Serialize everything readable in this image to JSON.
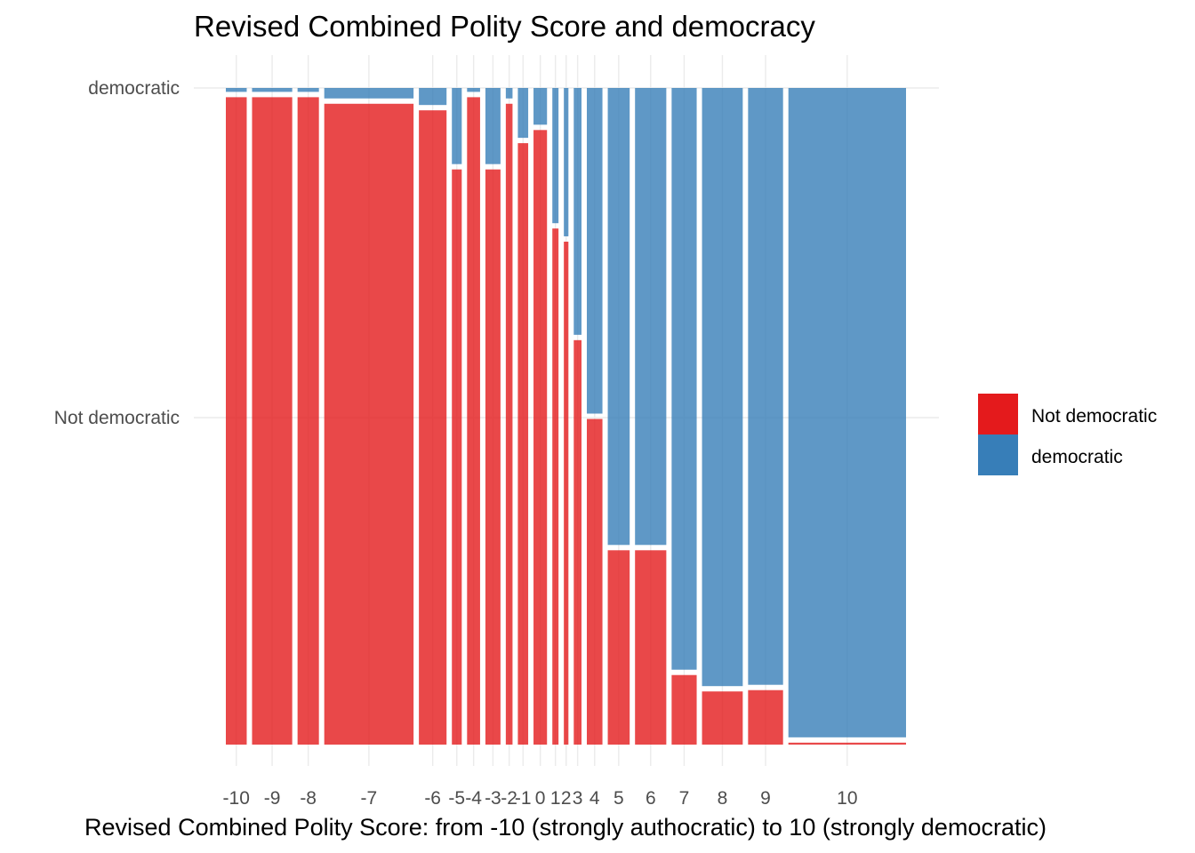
{
  "chart_data": {
    "type": "mosaic",
    "title": "Revised Combined Polity Score and democracy",
    "xlabel": "Revised Combined Polity Score: from -10 (strongly authocratic) to 10 (strongly democratic)",
    "ylabel": "",
    "y_levels": [
      "Not democratic",
      "democratic"
    ],
    "ylim": [
      0,
      1
    ],
    "grid": true,
    "legend_position": "right",
    "categories": [
      "-10",
      "-9",
      "-8",
      "-7",
      "-6",
      "-5",
      "-4",
      "-3",
      "-2",
      "-1",
      "0",
      "1",
      "2",
      "3",
      "4",
      "5",
      "6",
      "7",
      "8",
      "9",
      "10"
    ],
    "column_share": [
      0.0299,
      0.0578,
      0.0339,
      0.1202,
      0.0419,
      0.0193,
      0.0233,
      0.0259,
      0.0153,
      0.0199,
      0.0239,
      0.0146,
      0.0126,
      0.0166,
      0.0266,
      0.0346,
      0.0465,
      0.0386,
      0.0585,
      0.0512,
      0.1528
    ],
    "series": [
      {
        "name": "Not democratic",
        "color": "#E41A1C",
        "values": [
          0.99,
          0.99,
          0.99,
          0.98,
          0.97,
          0.88,
          0.99,
          0.88,
          0.98,
          0.92,
          0.94,
          0.79,
          0.77,
          0.62,
          0.5,
          0.3,
          0.3,
          0.11,
          0.085,
          0.087,
          0.007
        ]
      },
      {
        "name": "democratic",
        "color": "#377EB8",
        "values": [
          0.01,
          0.01,
          0.01,
          0.02,
          0.03,
          0.12,
          0.01,
          0.12,
          0.02,
          0.08,
          0.06,
          0.21,
          0.23,
          0.38,
          0.5,
          0.7,
          0.7,
          0.89,
          0.915,
          0.913,
          0.993
        ]
      }
    ],
    "legend": [
      {
        "label": "Not democratic",
        "color": "#E41A1C"
      },
      {
        "label": "democratic",
        "color": "#377EB8"
      }
    ]
  }
}
